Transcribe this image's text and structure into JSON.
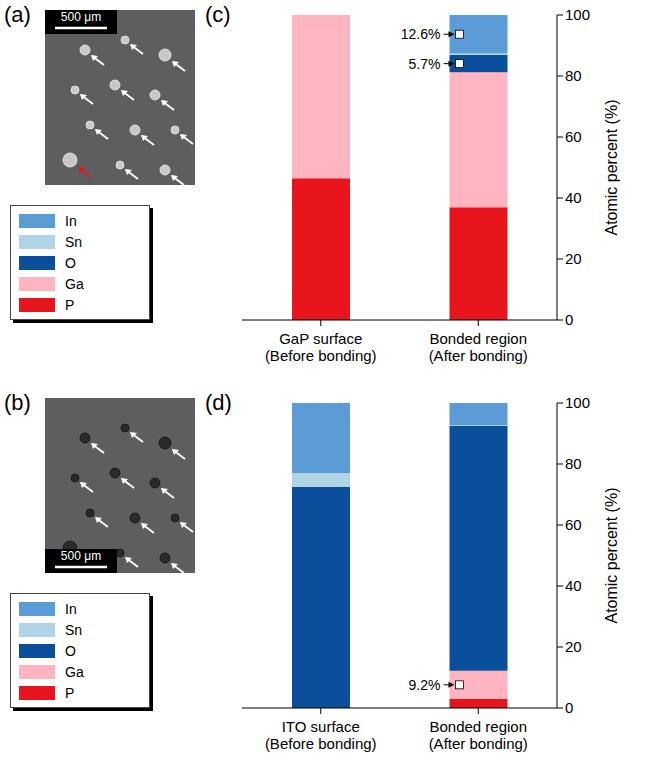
{
  "images": [
    {
      "panel": "(a)",
      "scale_bar": "500 μm"
    },
    {
      "panel": "(b)",
      "scale_bar": "500 μm"
    }
  ],
  "chart_data": [
    {
      "panel": "(c)",
      "type": "bar",
      "stacked": true,
      "categories": [
        "GaP surface\n(Before bonding)",
        "Bonded region\n(After bonding)"
      ],
      "y_label": "Atomic percent (%)",
      "ylim": [
        0,
        100
      ],
      "yticks": [
        0,
        20,
        40,
        60,
        80,
        100
      ],
      "legend": "lower left",
      "series": [
        {
          "name": "P",
          "color": "#e8141c",
          "values": [
            46.5,
            37.0
          ]
        },
        {
          "name": "Ga",
          "color": "#ffb5bf",
          "values": [
            53.5,
            44.2
          ]
        },
        {
          "name": "O",
          "color": "#0b4f9c",
          "values": [
            0,
            5.7
          ],
          "value_labels": [
            null,
            "5.7%"
          ]
        },
        {
          "name": "Sn",
          "color": "#b0d4e6",
          "values": [
            0,
            0.5
          ]
        },
        {
          "name": "In",
          "color": "#5b9bd6",
          "values": [
            0,
            12.6
          ],
          "value_labels": [
            null,
            "12.6%"
          ]
        }
      ]
    },
    {
      "panel": "(d)",
      "type": "bar",
      "stacked": true,
      "categories": [
        "ITO surface\n(Before bonding)",
        "Bonded region\n(After bonding)"
      ],
      "y_label": "Atomic percent (%)",
      "ylim": [
        0,
        100
      ],
      "yticks": [
        0,
        20,
        40,
        60,
        80,
        100
      ],
      "legend": "lower left",
      "series": [
        {
          "name": "P",
          "color": "#e8141c",
          "values": [
            0,
            3.0
          ]
        },
        {
          "name": "Ga",
          "color": "#ffb5bf",
          "values": [
            0,
            9.2
          ],
          "value_labels": [
            null,
            "9.2%"
          ]
        },
        {
          "name": "O",
          "color": "#0b4f9c",
          "values": [
            72.5,
            80.3
          ]
        },
        {
          "name": "Sn",
          "color": "#b0d4e6",
          "values": [
            4.5,
            0.3
          ]
        },
        {
          "name": "In",
          "color": "#5b9bd6",
          "values": [
            23.0,
            7.2
          ]
        }
      ]
    }
  ]
}
